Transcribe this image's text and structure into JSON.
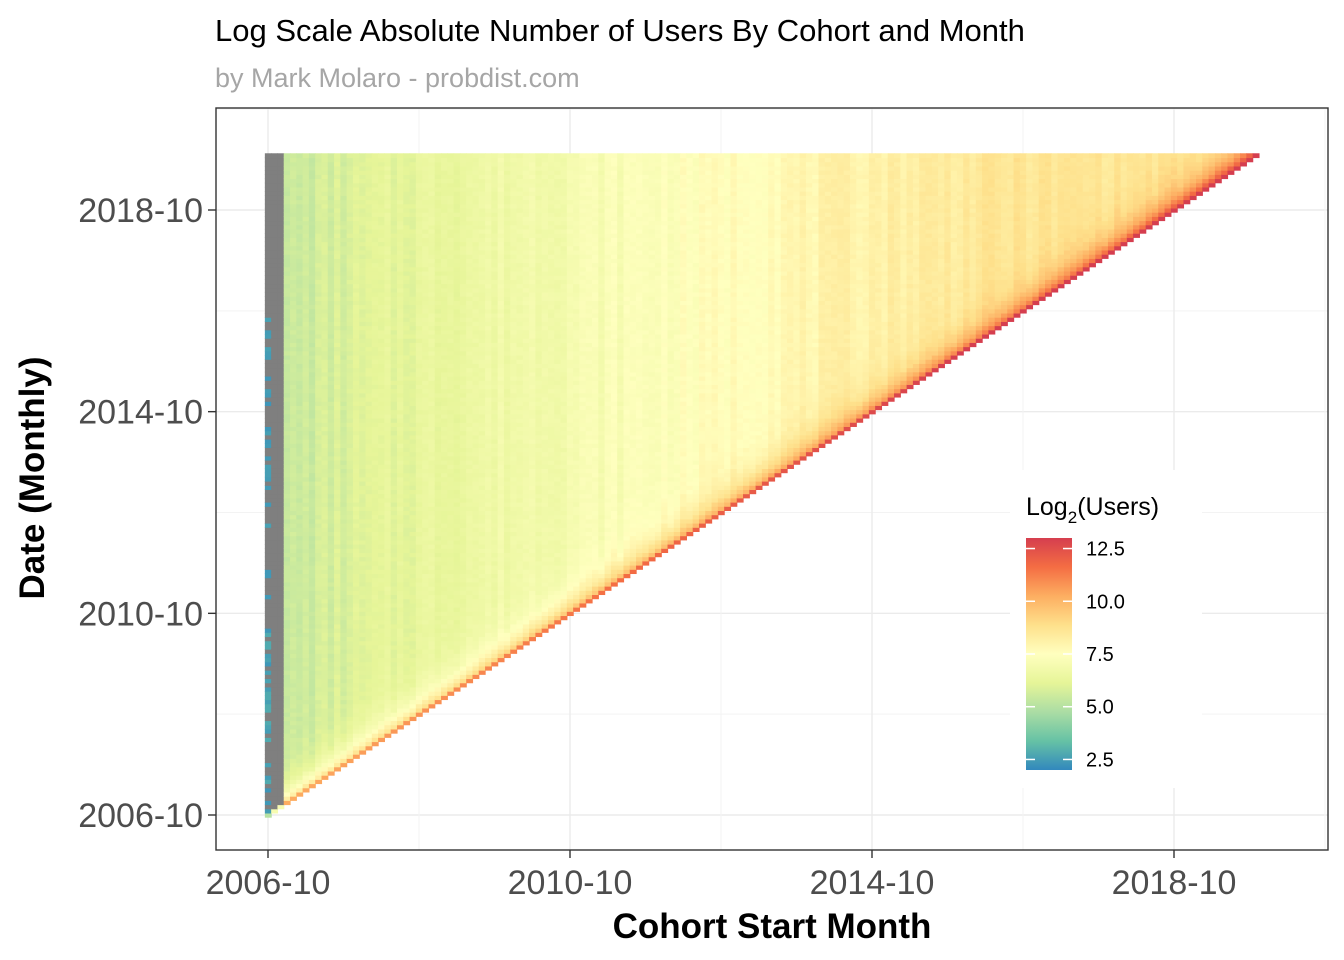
{
  "chart_data": {
    "type": "heatmap",
    "title": "Log Scale Absolute Number of Users By Cohort and Month",
    "subtitle": "by Mark Molaro - probdist.com",
    "xlabel": "Cohort Start Month",
    "ylabel": "Date (Monthly)",
    "x_range": [
      "2006-10",
      "2019-11"
    ],
    "y_range": [
      "2006-10",
      "2019-11"
    ],
    "x_ticks": [
      "2006-10",
      "2010-10",
      "2014-10",
      "2018-10"
    ],
    "y_ticks": [
      "2006-10",
      "2010-10",
      "2014-10",
      "2018-10"
    ],
    "grid": true,
    "cell_unit": "month",
    "shape": "lower-right triangle: each cohort has values for months from its start month onward",
    "legend": {
      "title_main": "Log",
      "title_sub": "2",
      "title_rest": "(Users)",
      "position": "right-inside",
      "labels": [
        "12.5",
        "10.0",
        "7.5",
        "5.0",
        "2.5"
      ],
      "values": [
        12.5,
        10.0,
        7.5,
        5.0,
        2.5
      ],
      "range": [
        2.0,
        13.0
      ],
      "palette": "Spectral"
    },
    "colors": {
      "na": "#7f7f7f",
      "scale": [
        "#3288bd",
        "#66c2a5",
        "#abdda4",
        "#e6f598",
        "#ffffbf",
        "#fee08b",
        "#fdae61",
        "#f46d43",
        "#d53e4f"
      ]
    },
    "approx_values": {
      "first_cohort": "2006-10 (sparse, mostly missing; observed values ~2-3)",
      "diagonal_first_month_2006": 9.0,
      "diagonal_first_month_2019": 13.0,
      "early_cohorts_2007_level": 5.0,
      "later_cohorts_retained_level": 8.5
    }
  }
}
